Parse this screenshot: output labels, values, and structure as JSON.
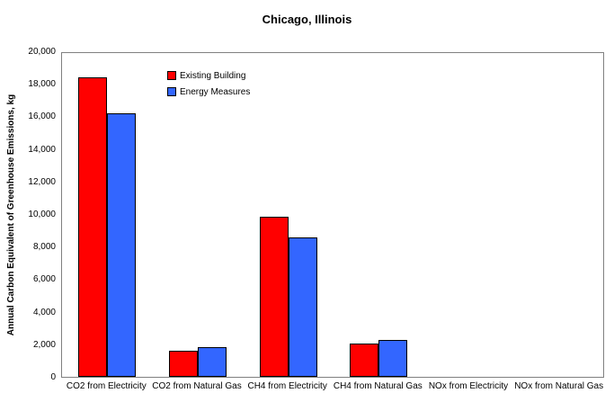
{
  "chart_data": {
    "type": "bar",
    "title": "Chicago, Illinois",
    "xlabel": "",
    "ylabel": "Annual Carbon Equivalent of Greenhouse Emissions, kg",
    "ylim": [
      0,
      20000
    ],
    "ytick_step": 2000,
    "ytick_labels": [
      "0",
      "2,000",
      "4,000",
      "6,000",
      "8,000",
      "10,000",
      "12,000",
      "14,000",
      "16,000",
      "18,000",
      "20,000"
    ],
    "grid": false,
    "legend_position": "top-left-inside",
    "categories": [
      "CO2 from Electricity",
      "CO2 from Natural Gas",
      "CH4 from Electricity",
      "CH4 from Natural Gas",
      "NOx from Electricity",
      "NOx from Natural Gas"
    ],
    "series": [
      {
        "name": "Existing Building",
        "color": "#FF0000",
        "values": [
          18400,
          1600,
          9850,
          2050,
          0,
          0
        ]
      },
      {
        "name": "Energy Measures",
        "color": "#3366FF",
        "values": [
          16200,
          1850,
          8550,
          2250,
          0,
          0
        ]
      }
    ]
  }
}
